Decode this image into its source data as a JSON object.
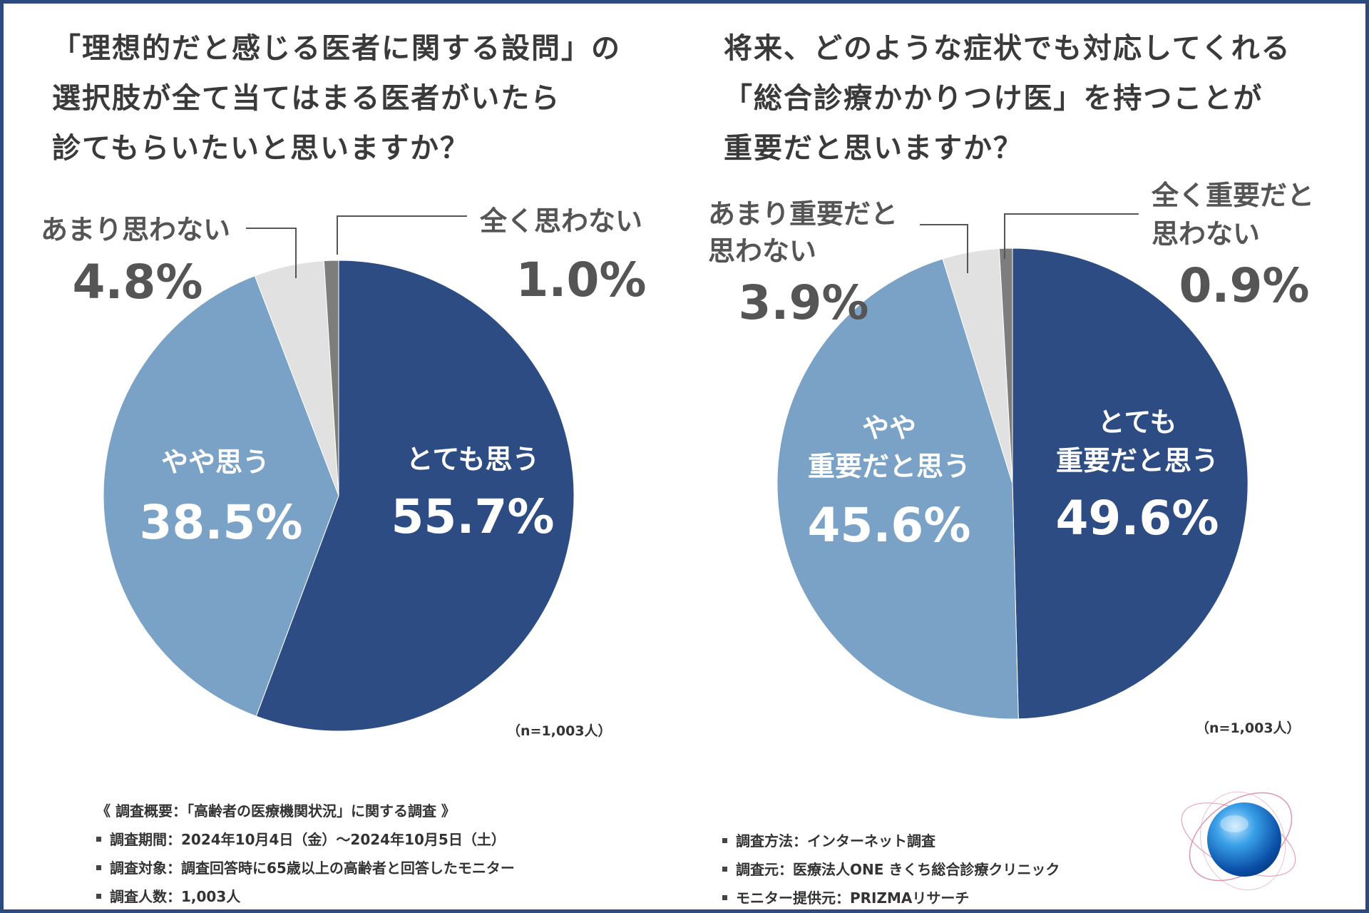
{
  "chart_data": [
    {
      "type": "pie",
      "title_lines": [
        "「理想的だと感じる医者に関する設問」の",
        "選択肢が全て当てはまる医者がいたら",
        "診てもらいたいと思いますか？"
      ],
      "slices": [
        {
          "label": "とても思う",
          "value": 55.7,
          "display": "55.7%",
          "color": "#2e4c84"
        },
        {
          "label": "やや思う",
          "value": 38.5,
          "display": "38.5%",
          "color": "#7aa2c7"
        },
        {
          "label": "あまり思わない",
          "value": 4.8,
          "display": "4.8%",
          "color": "#e1e1e1"
        },
        {
          "label": "全く思わない",
          "value": 1.0,
          "display": "1.0%",
          "color": "#7d7d7d"
        }
      ],
      "note": "（n=1,003人）"
    },
    {
      "type": "pie",
      "title_lines": [
        "将来、どのような症状でも対応してくれる",
        "「総合診療かかりつけ医」を持つことが",
        "重要だと思いますか？"
      ],
      "slices": [
        {
          "label_lines": [
            "とても",
            "重要だと思う"
          ],
          "value": 49.6,
          "display": "49.6%",
          "color": "#2e4c84"
        },
        {
          "label_lines": [
            "やや",
            "重要だと思う"
          ],
          "value": 45.6,
          "display": "45.6%",
          "color": "#7aa2c7"
        },
        {
          "label_lines": [
            "あまり重要だと",
            "思わない"
          ],
          "value": 3.9,
          "display": "3.9%",
          "color": "#e1e1e1"
        },
        {
          "label_lines": [
            "全く重要だと",
            "思わない"
          ],
          "value": 0.9,
          "display": "0.9%",
          "color": "#7d7d7d"
        }
      ],
      "note": "（n=1,003人）"
    }
  ],
  "survey": {
    "heading": "《 調査概要：「高齢者の医療機関状況」に関する調査 》",
    "left_items": [
      "調査期間：2024年10月4日（金）～2024年10月5日（土）",
      "調査対象：調査回答時に65歳以上の高齢者と回答したモニター",
      "調査人数：1,003人"
    ],
    "right_items": [
      "調査方法：インターネット調査",
      "調査元：医療法人ONE きくち総合診療クリニック",
      "モニター提供元：PRIZMAリサーチ"
    ]
  }
}
